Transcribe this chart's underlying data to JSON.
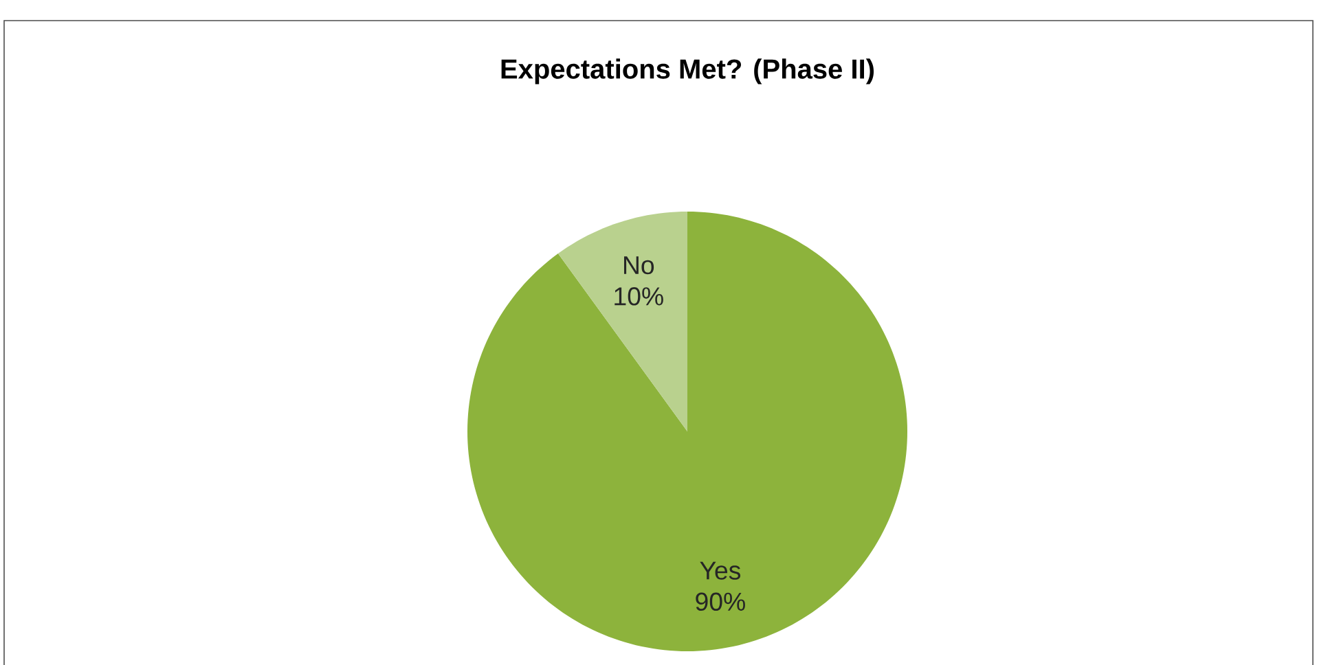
{
  "chart_data": {
    "type": "pie",
    "title": "Expectations Met? (Phase II)",
    "categories": [
      "Yes",
      "No"
    ],
    "values": [
      90,
      10
    ],
    "value_labels": [
      "90%",
      "10%"
    ],
    "colors": [
      "#8db33c",
      "#b9d18e"
    ]
  }
}
